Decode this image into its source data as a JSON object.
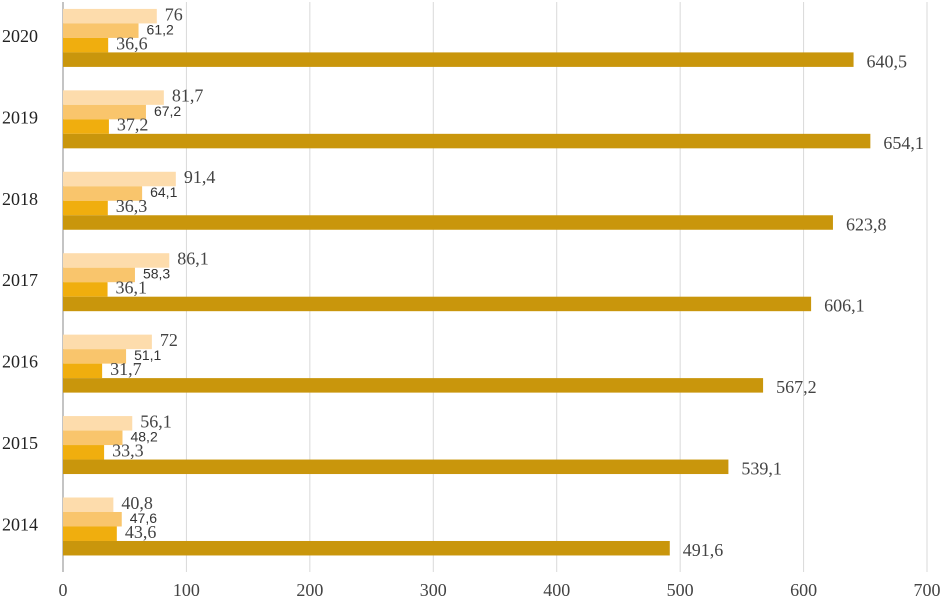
{
  "chart_data": {
    "type": "bar",
    "orientation": "horizontal",
    "categories": [
      "2014",
      "2015",
      "2016",
      "2017",
      "2018",
      "2019",
      "2020"
    ],
    "series": [
      {
        "color": "#fddcac",
        "values": [
          40.8,
          56.1,
          72,
          86.1,
          91.4,
          81.7,
          76
        ],
        "value_labels": [
          "40,8",
          "56,1",
          "72",
          "86,1",
          "91,4",
          "81,7",
          "76"
        ]
      },
      {
        "color": "#f9c56c",
        "values": [
          47.6,
          48.2,
          51.1,
          58.3,
          64.1,
          67.2,
          61.2
        ],
        "value_labels": [
          "47,6",
          "48,2",
          "51,1",
          "58,3",
          "64,1",
          "67,2",
          "61,2"
        ]
      },
      {
        "color": "#f0ae0e",
        "values": [
          43.6,
          33.3,
          31.7,
          36.1,
          36.3,
          37.2,
          36.6
        ],
        "value_labels": [
          "43,6",
          "33,3",
          "31,7",
          "36,1",
          "36,3",
          "37,2",
          "36,6"
        ]
      },
      {
        "color": "#c9960c",
        "values": [
          491.6,
          539.1,
          567.2,
          606.1,
          623.8,
          654.1,
          640.5
        ],
        "value_labels": [
          "491,6",
          "539,1",
          "567,2",
          "606,1",
          "623,8",
          "654,1",
          "640,5"
        ]
      }
    ],
    "xlim": [
      0,
      700
    ],
    "xticks": [
      0,
      100,
      200,
      300,
      400,
      500,
      600,
      700
    ],
    "grid": true
  }
}
